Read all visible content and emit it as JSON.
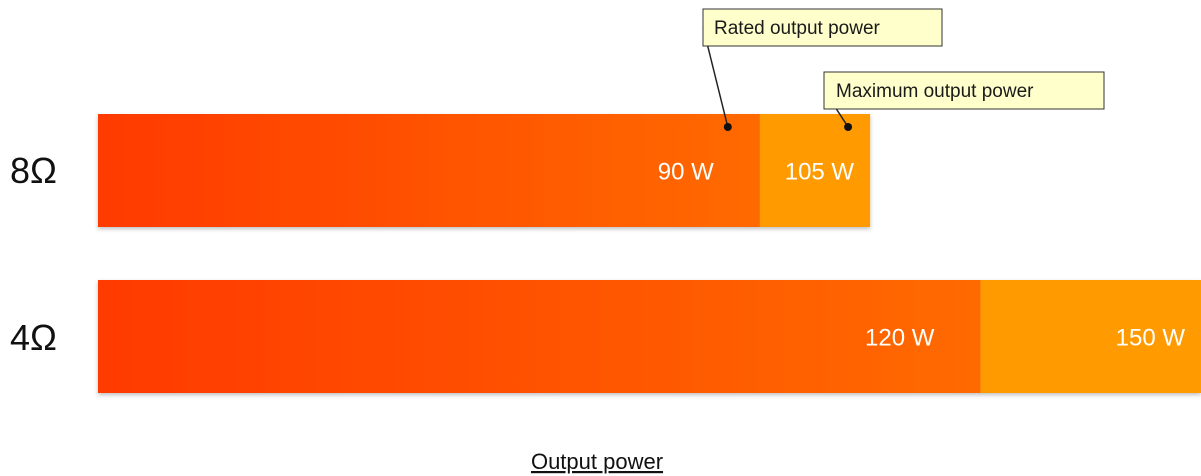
{
  "chart_data": {
    "type": "bar",
    "orientation": "horizontal",
    "stacked": false,
    "title": "",
    "xlabel": "Output power",
    "ylabel": "",
    "categories": [
      "8Ω",
      "4Ω"
    ],
    "series": [
      {
        "name": "Rated output power",
        "values": [
          90,
          120
        ],
        "value_labels": [
          "90 W",
          "120 W"
        ],
        "color": "#ff4a00"
      },
      {
        "name": "Maximum output power",
        "values": [
          105,
          150
        ],
        "value_labels": [
          "105 W",
          "150 W"
        ],
        "color": "#ff9a00"
      }
    ],
    "legend": "callouts",
    "grid": false
  },
  "colors": {
    "rated_start": "#ff3a00",
    "rated_end": "#ff6a00",
    "maximum": "#ff9a00",
    "callout_fill": "#ffffcc"
  }
}
